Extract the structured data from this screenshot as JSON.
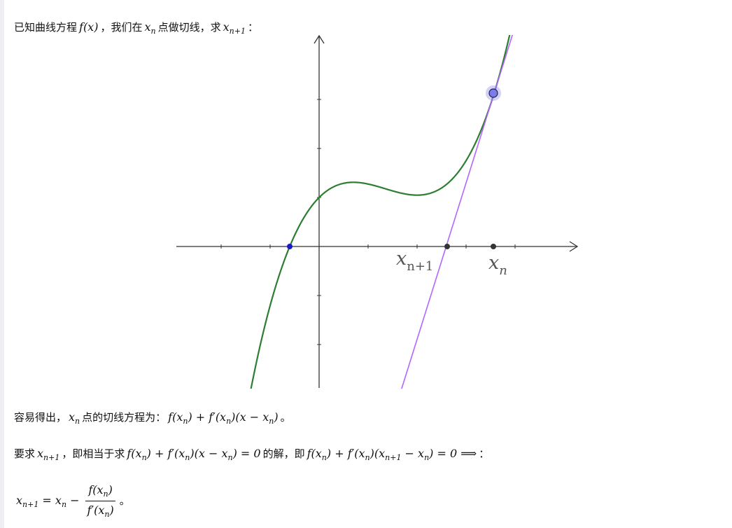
{
  "intro": {
    "text1": "已知曲线方程",
    "math1": "f(x)",
    "text2": "，我们在",
    "math2": "x_{n}",
    "text3": "点做切线，求",
    "math3": "x_{n+1}",
    "text4": "："
  },
  "diagram": {
    "curve_color": "#2e7d32",
    "tangent_color": "#b266ff",
    "point_color": "#7b7bf0",
    "label_xn1": "x",
    "label_xn1_sub": "n+1",
    "label_xn": "x",
    "label_xn_sub": "n"
  },
  "p1": {
    "text1": "容易得出，",
    "math1": "x_{n}",
    "text2": "点的切线方程为：",
    "math2": "f(x_{n}) + f′(x_{n})(x − x_{n})",
    "text3": "。"
  },
  "p2": {
    "text1": "要求",
    "math1": "x_{n+1}",
    "text2": "，即相当于求",
    "math2": "f(x_{n}) + f′(x_{n})(x − x_{n}) = 0",
    "text3": "的解，即",
    "math3": "f(x_{n}) + f′(x_{n})(x_{n+1} − x_{n}) = 0  ⟹",
    "text4": "："
  },
  "p3": {
    "lhs": "x_{n+1} = x_{n} −",
    "numerator": "f(x_{n})",
    "denominator": "f′(x_{n})",
    "text1": "。"
  }
}
